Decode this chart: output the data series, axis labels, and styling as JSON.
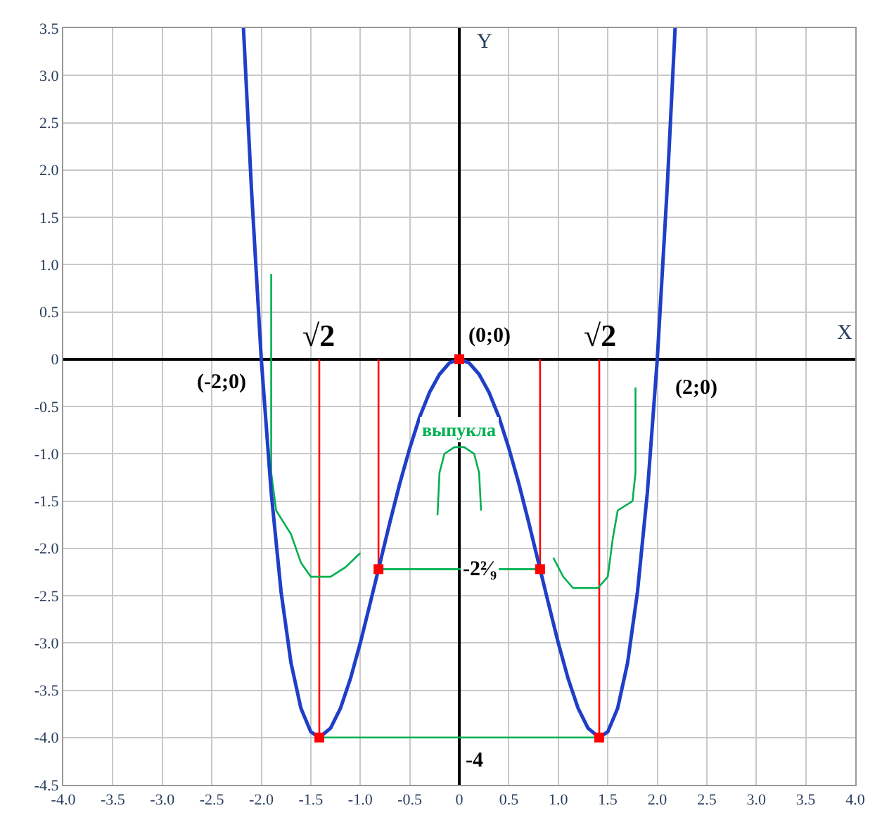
{
  "chart_data": {
    "type": "line",
    "xlabel": "X",
    "ylabel": "Y",
    "xlim": [
      -4,
      4
    ],
    "ylim": [
      -4.5,
      3.5
    ],
    "xticks": [
      {
        "value": -4,
        "label": "-4.0"
      },
      {
        "value": -3.5,
        "label": "-3.5"
      },
      {
        "value": -3,
        "label": "-3.0"
      },
      {
        "value": -2.5,
        "label": "-2.5"
      },
      {
        "value": -2,
        "label": "-2.0"
      },
      {
        "value": -1.5,
        "label": "-1.5"
      },
      {
        "value": -1,
        "label": "-1.0"
      },
      {
        "value": -0.5,
        "label": "-0.5"
      },
      0,
      {
        "value": 0.5,
        "label": "0.5"
      },
      {
        "value": 1,
        "label": "1.0"
      },
      {
        "value": 1.5,
        "label": "1.5"
      },
      {
        "value": 2,
        "label": "2.0"
      },
      {
        "value": 2.5,
        "label": "2.5"
      },
      {
        "value": 3,
        "label": "3.0"
      },
      {
        "value": 3.5,
        "label": "3.5"
      },
      {
        "value": 4,
        "label": "4.0"
      }
    ],
    "yticks": [
      {
        "value": -4.5,
        "label": "-4.5"
      },
      {
        "value": -4,
        "label": "-4.0"
      },
      {
        "value": -3.5,
        "label": "-3.5"
      },
      {
        "value": -3,
        "label": "-3.0"
      },
      {
        "value": -2.5,
        "label": "-2.5"
      },
      {
        "value": -2,
        "label": "-2.0"
      },
      {
        "value": -1.5,
        "label": "-1.5"
      },
      {
        "value": -1,
        "label": "-1.0"
      },
      {
        "value": -0.5,
        "label": "-0.5"
      },
      0,
      {
        "value": 0.5,
        "label": "0.5"
      },
      {
        "value": 1,
        "label": "1.0"
      },
      {
        "value": 1.5,
        "label": "1.5"
      },
      {
        "value": 2,
        "label": "2.0"
      },
      {
        "value": 2.5,
        "label": "2.5"
      },
      {
        "value": 3,
        "label": "3.0"
      },
      {
        "value": 3.5,
        "label": "3.5"
      }
    ],
    "grid": true,
    "line_style": "solid",
    "series": [
      {
        "color": "#ff0000",
        "x": [
          -1.414,
          -1.414
        ],
        "values": [
          0,
          -4
        ]
      },
      {
        "color": "#ff0000",
        "x": [
          -0.816,
          -0.816
        ],
        "values": [
          0,
          -2.22
        ]
      },
      {
        "color": "#ff0000",
        "x": [
          0.816,
          0.816
        ],
        "values": [
          0,
          -2.22
        ]
      },
      {
        "color": "#ff0000",
        "x": [
          1.414,
          1.414
        ],
        "values": [
          0,
          -4
        ]
      },
      {
        "color": "#00b050",
        "x": [
          -0.816,
          0.816
        ],
        "values": [
          -2.22,
          -2.22
        ]
      },
      {
        "color": "#00b050",
        "x": [
          -1.414,
          1.414
        ],
        "values": [
          -4,
          -4
        ]
      },
      {
        "color": "#00b050",
        "x": [
          -1.9,
          -1.9,
          -1.85,
          -1.7,
          -1.6,
          -1.5,
          -1.3,
          -1.15,
          -1.0
        ],
        "values": [
          0.9,
          -1.2,
          -1.6,
          -1.85,
          -2.15,
          -2.3,
          -2.3,
          -2.2,
          -2.05
        ]
      },
      {
        "color": "#00b050",
        "x": [
          0.95,
          1.05,
          1.15,
          1.4,
          1.5,
          1.55,
          1.6,
          1.75,
          1.78,
          1.78
        ],
        "values": [
          -2.1,
          -2.3,
          -2.42,
          -2.42,
          -2.3,
          -1.9,
          -1.6,
          -1.5,
          -1.2,
          -0.3
        ]
      },
      {
        "color": "#00b050",
        "x": [
          -0.22,
          -0.2,
          -0.15,
          -0.05,
          0.05,
          0.15,
          0.2,
          0.22
        ],
        "values": [
          -1.65,
          -1.2,
          -1.0,
          -0.93,
          -0.93,
          -1.0,
          -1.2,
          -1.6
        ]
      },
      {
        "color": "#1f3fc8",
        "x": [
          -2.18,
          -2.1,
          -2.0,
          -1.9,
          -1.8,
          -1.7,
          -1.6,
          -1.5,
          -1.414,
          -1.3,
          -1.2,
          -1.1,
          -1.0,
          -0.9,
          -0.816,
          -0.7,
          -0.6,
          -0.5,
          -0.4,
          -0.3,
          -0.2,
          -0.1,
          0,
          0.1,
          0.2,
          0.3,
          0.4,
          0.5,
          0.6,
          0.7,
          0.816,
          0.9,
          1.0,
          1.1,
          1.2,
          1.3,
          1.414,
          1.5,
          1.6,
          1.7,
          1.8,
          1.9,
          2.0,
          2.1,
          2.18
        ],
        "values": [
          3.5,
          1.81,
          0,
          -1.41,
          -2.46,
          -3.21,
          -3.69,
          -3.94,
          -4,
          -3.9,
          -3.69,
          -3.38,
          -3,
          -2.58,
          -2.22,
          -1.72,
          -1.31,
          -0.94,
          -0.61,
          -0.35,
          -0.16,
          -0.04,
          0,
          -0.04,
          -0.16,
          -0.35,
          -0.61,
          -0.94,
          -1.31,
          -1.72,
          -2.22,
          -2.58,
          -3,
          -3.38,
          -3.69,
          -3.9,
          -4,
          -3.94,
          -3.69,
          -3.21,
          -2.46,
          -1.41,
          0,
          1.81,
          3.5
        ]
      },
      {
        "type": "scatter",
        "marker": "square",
        "color": "#ff0000",
        "x": [
          -1.414,
          -0.816,
          0,
          0.816,
          1.414
        ],
        "values": [
          -4,
          -2.22,
          0,
          -2.22,
          -4
        ]
      }
    ],
    "annotations": [
      "√2",
      "√2",
      "(0;0)",
      "(-2;0)",
      "(2;0)",
      "выпукла",
      "-2²⁄₉",
      "-4"
    ]
  }
}
